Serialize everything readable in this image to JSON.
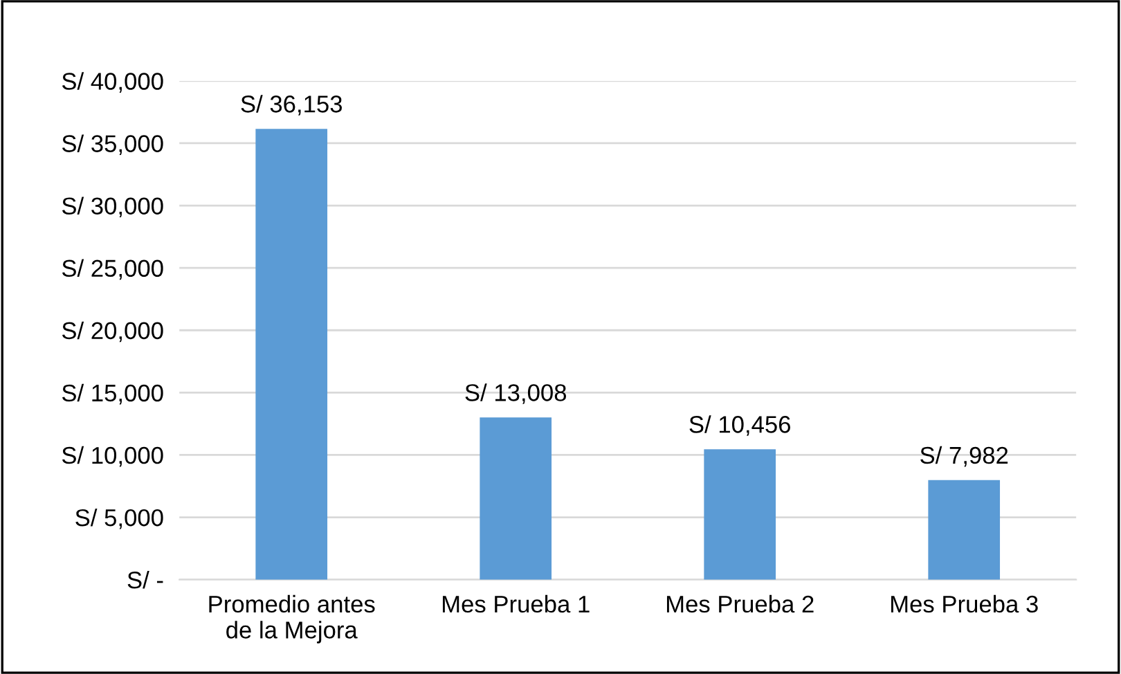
{
  "chart_data": {
    "type": "bar",
    "categories": [
      "Promedio antes\nde la Mejora",
      "Mes Prueba 1",
      "Mes Prueba 2",
      "Mes Prueba 3"
    ],
    "values": [
      36153,
      13008,
      10456,
      7982
    ],
    "value_labels": [
      "S/ 36,153",
      "S/ 13,008",
      "S/ 10,456",
      "S/ 7,982"
    ],
    "color": "#5b9bd5",
    "ylim": [
      0,
      40000
    ],
    "yticks": [
      {
        "value": 0,
        "label": "S/ -"
      },
      {
        "value": 5000,
        "label": "S/ 5,000"
      },
      {
        "value": 10000,
        "label": "S/ 10,000"
      },
      {
        "value": 15000,
        "label": "S/ 15,000"
      },
      {
        "value": 20000,
        "label": "S/ 20,000"
      },
      {
        "value": 25000,
        "label": "S/ 25,000"
      },
      {
        "value": 30000,
        "label": "S/ 30,000"
      },
      {
        "value": 35000,
        "label": "S/ 35,000"
      },
      {
        "value": 40000,
        "label": "S/ 40,000"
      }
    ],
    "grid": "y"
  }
}
